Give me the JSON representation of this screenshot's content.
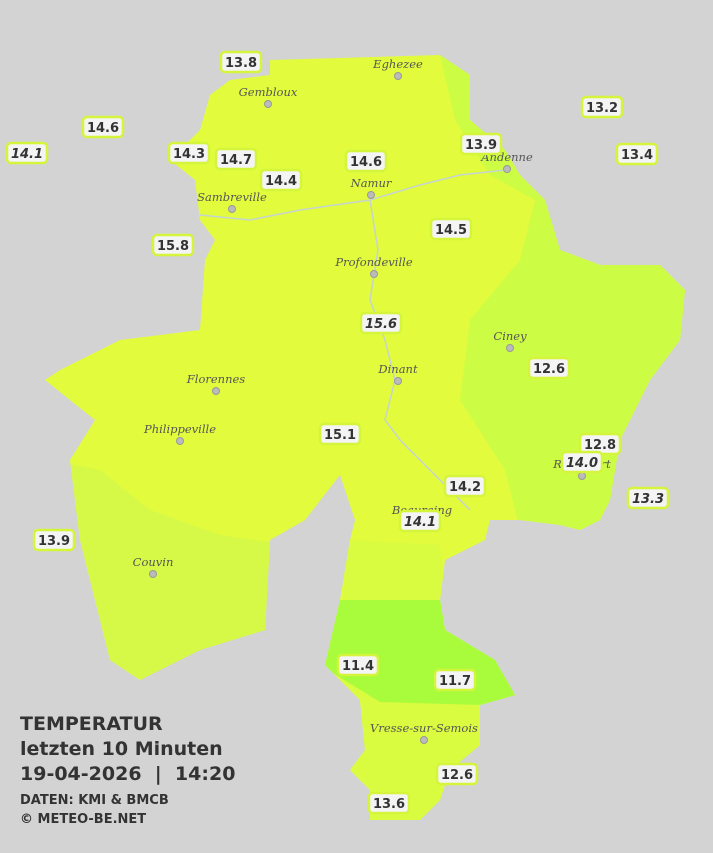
{
  "header": {
    "title": "TEMPERATUR",
    "subtitle": "letzten 10 Minuten",
    "datetime": "19-04-2026  |  14:20",
    "source": "DATEN: KMI & BMCB",
    "copyright": "© METEO-BE.NET"
  },
  "cities": [
    "Eghezee",
    "Gembloux",
    "Andenne",
    "Namur",
    "Sambreville",
    "Profondeville",
    "Ciney",
    "Dinant",
    "Florennes",
    "Philippeville",
    "Rochefort",
    "Beauraing",
    "Couvin",
    "Vresse-sur-Semois"
  ],
  "stations": [
    {
      "label": "13.8",
      "italic": false
    },
    {
      "label": "14.6",
      "italic": false
    },
    {
      "label": "14.1",
      "italic": true
    },
    {
      "label": "14.3",
      "italic": false
    },
    {
      "label": "14.7",
      "italic": false
    },
    {
      "label": "14.4",
      "italic": false
    },
    {
      "label": "14.6",
      "italic": false
    },
    {
      "label": "13.9",
      "italic": false
    },
    {
      "label": "13.2",
      "italic": false
    },
    {
      "label": "13.4",
      "italic": false
    },
    {
      "label": "14.5",
      "italic": false
    },
    {
      "label": "15.8",
      "italic": false
    },
    {
      "label": "15.6",
      "italic": true
    },
    {
      "label": "12.6",
      "italic": false
    },
    {
      "label": "15.1",
      "italic": false
    },
    {
      "label": "12.8",
      "italic": false
    },
    {
      "label": "14.0",
      "italic": true
    },
    {
      "label": "13.3",
      "italic": true
    },
    {
      "label": "14.2",
      "italic": false
    },
    {
      "label": "14.1",
      "italic": true
    },
    {
      "label": "13.9",
      "italic": false
    },
    {
      "label": "11.4",
      "italic": false
    },
    {
      "label": "11.7",
      "italic": false
    },
    {
      "label": "12.6",
      "italic": false
    },
    {
      "label": "13.6",
      "italic": false
    }
  ]
}
